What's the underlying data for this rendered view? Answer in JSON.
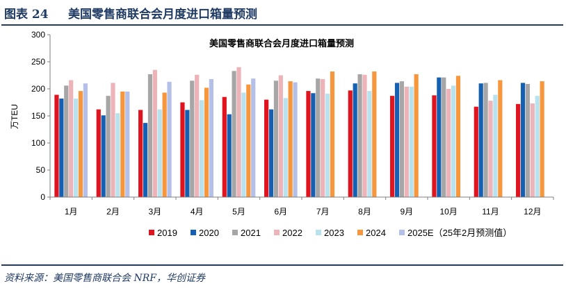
{
  "header": {
    "figure_label": "图表 24",
    "title": "美国零售商联合会月度进口箱量预测"
  },
  "source": "资料来源：美国零售商联合会 NRF，华创证券",
  "chart_data": {
    "type": "bar",
    "title": "美国零售商联合会月度进口箱量预测",
    "ylabel": "万TEU",
    "xlabel": "",
    "ylim": [
      0,
      300
    ],
    "yticks": [
      0,
      50,
      100,
      150,
      200,
      250,
      300
    ],
    "grid": false,
    "legend_position": "bottom",
    "categories": [
      "1月",
      "2月",
      "3月",
      "4月",
      "5月",
      "6月",
      "7月",
      "8月",
      "9月",
      "10月",
      "11月",
      "12月"
    ],
    "series": [
      {
        "name": "2019",
        "color": "#e0141e",
        "values": [
          189,
          162,
          161,
          175,
          185,
          180,
          196,
          197,
          187,
          188,
          167,
          172
        ]
      },
      {
        "name": "2020",
        "color": "#1560b0",
        "values": [
          182,
          151,
          137,
          161,
          153,
          162,
          192,
          210,
          211,
          221,
          210,
          211
        ]
      },
      {
        "name": "2021",
        "color": "#a6a6a6",
        "values": [
          206,
          187,
          227,
          215,
          233,
          215,
          219,
          227,
          214,
          221,
          211,
          209
        ]
      },
      {
        "name": "2022",
        "color": "#ecb4b8",
        "values": [
          216,
          211,
          235,
          226,
          240,
          225,
          218,
          226,
          204,
          200,
          178,
          173
        ]
      },
      {
        "name": "2023",
        "color": "#b9e2ef",
        "values": [
          182,
          155,
          162,
          179,
          193,
          183,
          191,
          196,
          204,
          206,
          189,
          187
        ]
      },
      {
        "name": "2024",
        "color": "#f6973d",
        "values": [
          196,
          195,
          193,
          202,
          208,
          214,
          232,
          232,
          227,
          224,
          216,
          214
        ]
      },
      {
        "name": "2025E（25年2月预测值）",
        "color": "#b4c0e8",
        "values": [
          210,
          195,
          213,
          218,
          219,
          212,
          null,
          null,
          null,
          null,
          null,
          null
        ]
      }
    ]
  }
}
